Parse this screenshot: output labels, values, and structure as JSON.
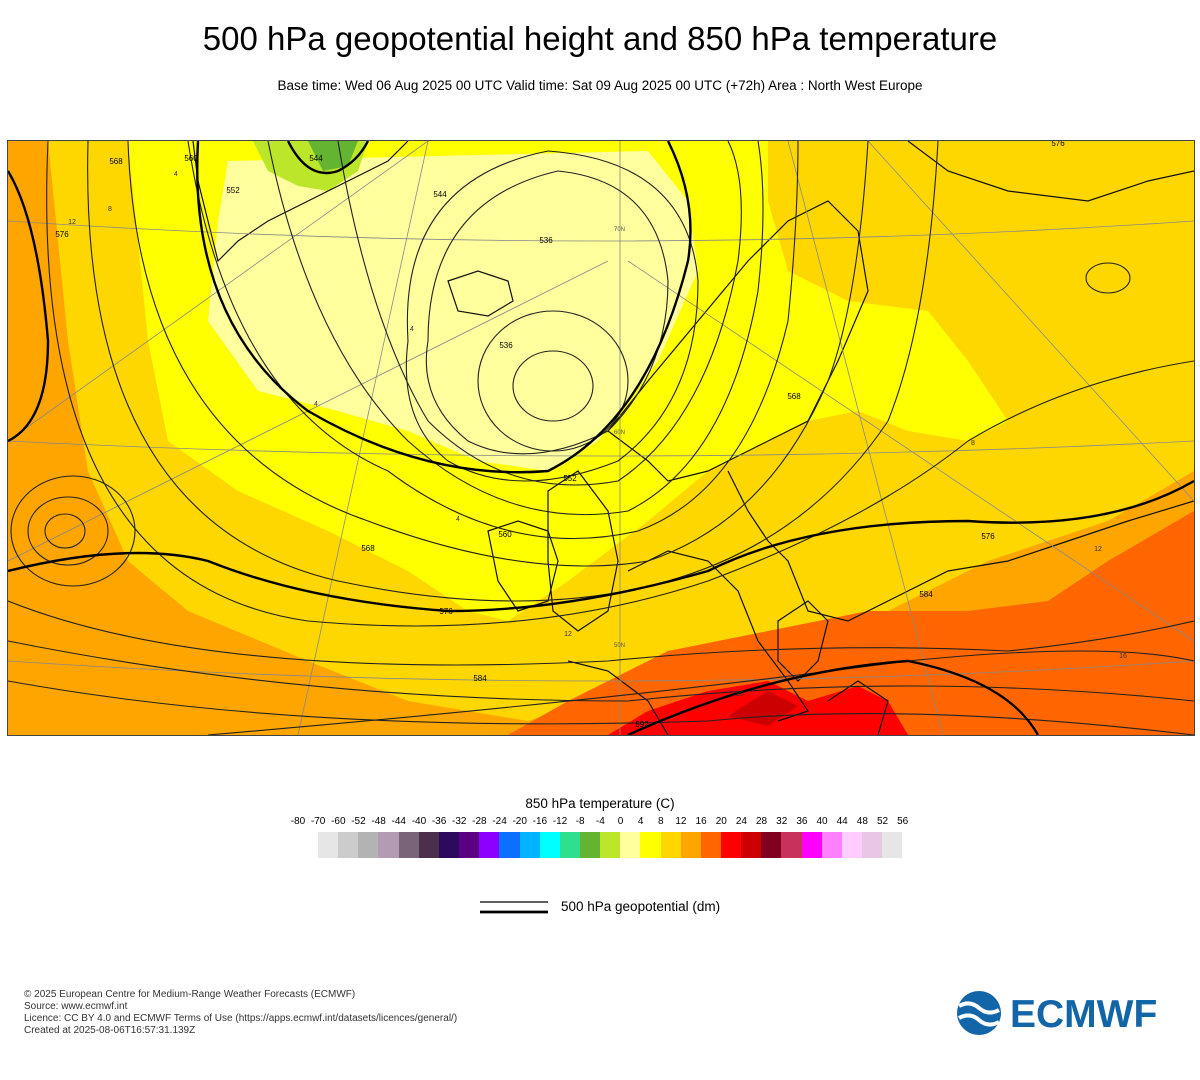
{
  "title": "500 hPa geopotential height and 850 hPa temperature",
  "subtitle": "Base time: Wed 06 Aug 2025 00 UTC Valid time: Sat 09 Aug 2025 00 UTC (+72h) Area : North West Europe",
  "map": {
    "contour_labels": [
      "576",
      "568",
      "576",
      "544",
      "560",
      "552",
      "536",
      "536",
      "544",
      "560",
      "568",
      "576",
      "584",
      "592",
      "568",
      "576",
      "584",
      "552"
    ],
    "temperature_labels": [
      "12",
      "8",
      "4",
      "4",
      "4",
      "4",
      "8",
      "12",
      "12",
      "20",
      "16"
    ],
    "lat_labels": [
      "70N",
      "60N",
      "50N"
    ]
  },
  "legend": {
    "title": "850 hPa temperature (C)",
    "ticks": [
      "-80",
      "-70",
      "-60",
      "-52",
      "-48",
      "-44",
      "-40",
      "-36",
      "-32",
      "-28",
      "-24",
      "-20",
      "-16",
      "-12",
      "-8",
      "-4",
      "0",
      "4",
      "8",
      "12",
      "16",
      "20",
      "24",
      "28",
      "32",
      "36",
      "40",
      "44",
      "48",
      "52",
      "56"
    ],
    "colors": [
      "#e6e6e6",
      "#cccccc",
      "#b3b3b3",
      "#b39bb3",
      "#7a6479",
      "#4b2f4b",
      "#2d0a5e",
      "#5b0082",
      "#8b00ff",
      "#0b70ff",
      "#00b4ff",
      "#00ffff",
      "#2ee08e",
      "#64b432",
      "#bce629",
      "#ffff9e",
      "#ffff00",
      "#ffd700",
      "#ffa500",
      "#ff6600",
      "#ff0000",
      "#cc0000",
      "#800020",
      "#c8325a",
      "#ff00ff",
      "#ff80ff",
      "#ffccff",
      "#e6c8e6",
      "#e6e6e6"
    ],
    "line_key_label": "500 hPa geopotential (dm)"
  },
  "credits": {
    "line1": "© 2025 European Centre for Medium-Range Weather Forecasts (ECMWF)",
    "line2": "Source: www.ecmwf.int",
    "line3": "Licence: CC BY 4.0 and ECMWF Terms of Use (https://apps.ecmwf.int/datasets/licences/general/)",
    "line4": "Created at 2025-08-06T16:57:31.139Z"
  },
  "logo_text": "ECMWF"
}
